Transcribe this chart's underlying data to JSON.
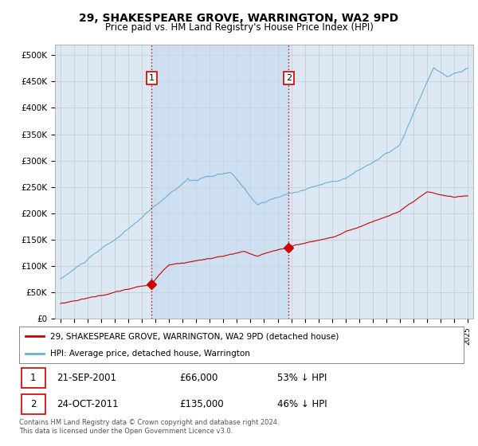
{
  "title": "29, SHAKESPEARE GROVE, WARRINGTON, WA2 9PD",
  "subtitle": "Price paid vs. HM Land Registry's House Price Index (HPI)",
  "background_color": "#ffffff",
  "plot_bg_color": "#dce9f5",
  "shade_color": "#c5d9ef",
  "hpi_color": "#6aaed6",
  "property_color": "#cc0000",
  "vline_color": "#cc0000",
  "sale1_date_num": 2001.72,
  "sale2_date_num": 2011.81,
  "sale1_price": 66000,
  "sale2_price": 135000,
  "ylim_min": 0,
  "ylim_max": 520000,
  "yticks": [
    0,
    50000,
    100000,
    150000,
    200000,
    250000,
    300000,
    350000,
    400000,
    450000,
    500000
  ],
  "ytick_labels": [
    "£0",
    "£50K",
    "£100K",
    "£150K",
    "£200K",
    "£250K",
    "£300K",
    "£350K",
    "£400K",
    "£450K",
    "£500K"
  ],
  "legend_label_property": "29, SHAKESPEARE GROVE, WARRINGTON, WA2 9PD (detached house)",
  "legend_label_hpi": "HPI: Average price, detached house, Warrington",
  "annotation1_date": "21-SEP-2001",
  "annotation1_price": "£66,000",
  "annotation1_pct": "53% ↓ HPI",
  "annotation2_date": "24-OCT-2011",
  "annotation2_price": "£135,000",
  "annotation2_pct": "46% ↓ HPI",
  "footer": "Contains HM Land Registry data © Crown copyright and database right 2024.\nThis data is licensed under the Open Government Licence v3.0."
}
